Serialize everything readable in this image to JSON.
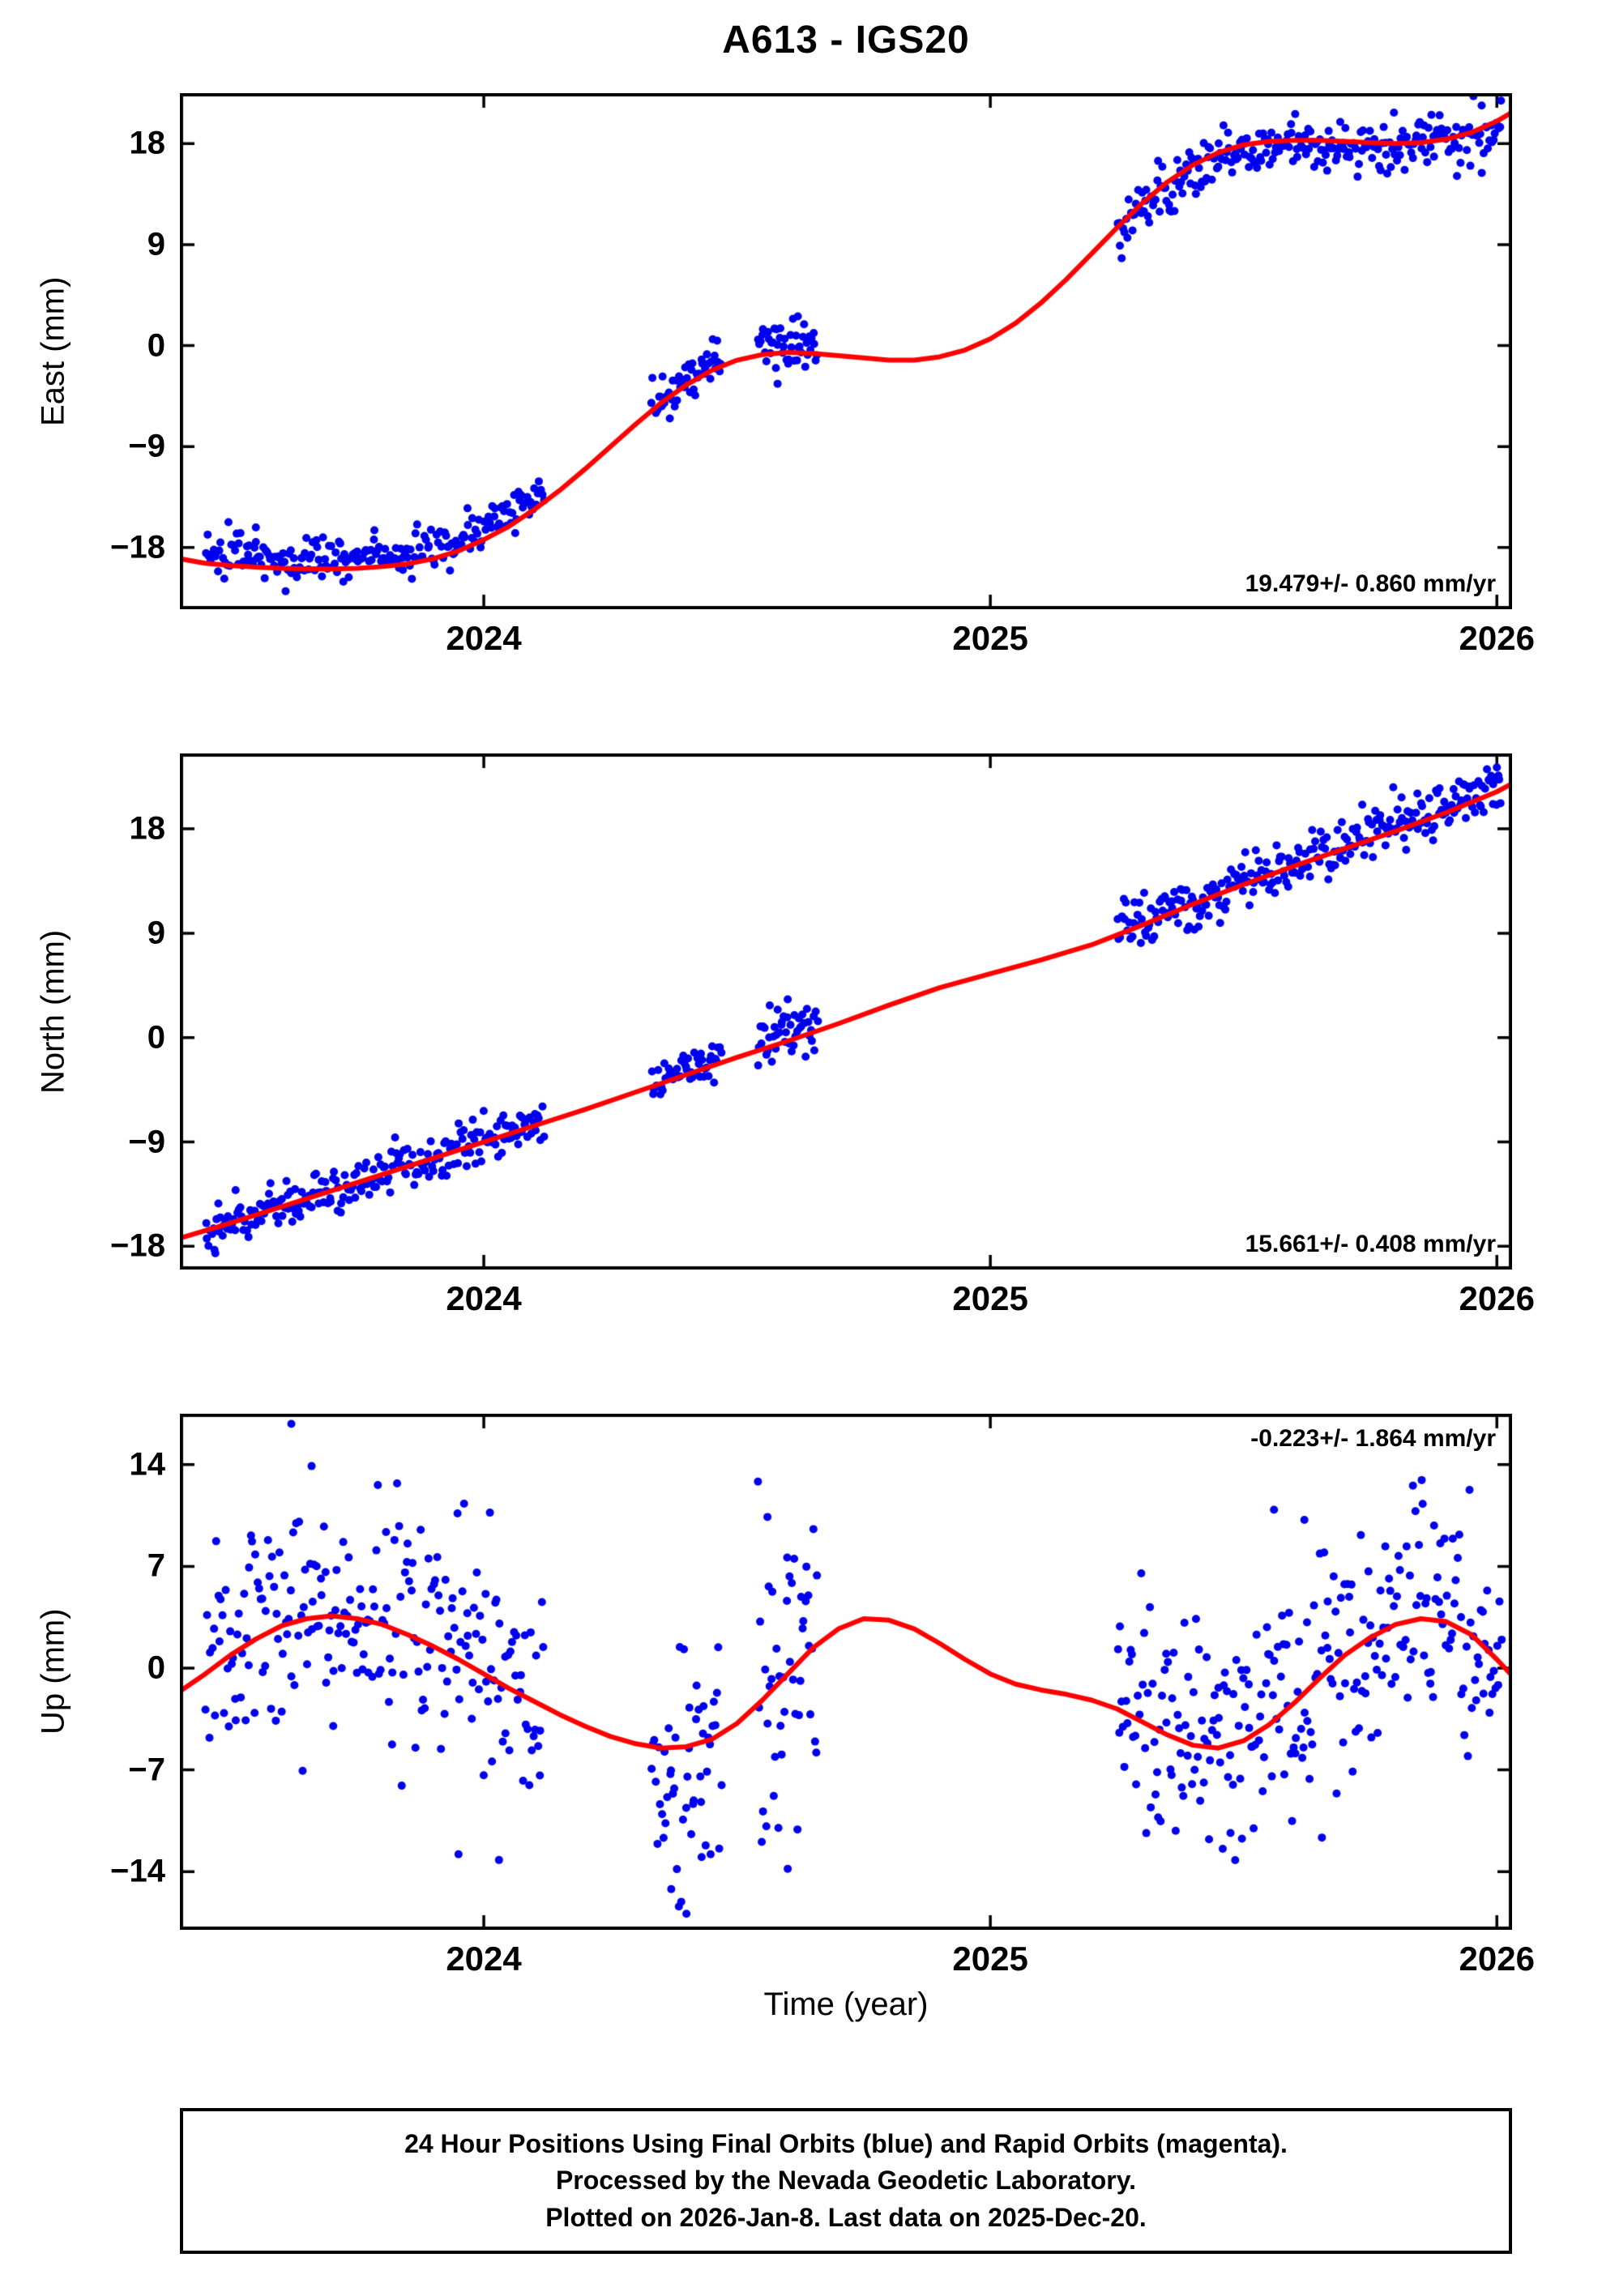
{
  "title": "A613 - IGS20",
  "xlabel": "Time (year)",
  "footer": {
    "line1": "24 Hour Positions Using Final Orbits (blue) and Rapid Orbits (magenta).",
    "line2": "Processed by the Nevada Geodetic Laboratory.",
    "line3": "Plotted on 2026-Jan-8. Last data on 2025-Dec-20."
  },
  "colors": {
    "points": "#0000ee",
    "model": "#ff0000",
    "axis": "#000000",
    "background": "#ffffff"
  },
  "chart_data": [
    {
      "type": "scatter",
      "name": "east",
      "ylabel": "East (mm)",
      "rate_label": "19.479+/- 0.860 mm/yr",
      "rate_label_position": "bottom-right",
      "xlim": [
        2023.4,
        2026.03
      ],
      "ylim": [
        -23.5,
        22.5
      ],
      "xticks": [
        2024,
        2025,
        2026
      ],
      "yticks": [
        -18,
        -9,
        0,
        9,
        18
      ],
      "seed": 11,
      "model": [
        [
          2023.4,
          -19.0
        ],
        [
          2023.45,
          -19.4
        ],
        [
          2023.5,
          -19.6
        ],
        [
          2023.55,
          -19.75
        ],
        [
          2023.6,
          -19.85
        ],
        [
          2023.65,
          -19.9
        ],
        [
          2023.7,
          -19.9
        ],
        [
          2023.75,
          -19.85
        ],
        [
          2023.8,
          -19.7
        ],
        [
          2023.85,
          -19.45
        ],
        [
          2023.9,
          -19.0
        ],
        [
          2023.95,
          -18.3
        ],
        [
          2024.0,
          -17.3
        ],
        [
          2024.05,
          -16.1
        ],
        [
          2024.1,
          -14.6
        ],
        [
          2024.15,
          -12.9
        ],
        [
          2024.2,
          -11.0
        ],
        [
          2024.25,
          -9.0
        ],
        [
          2024.3,
          -7.0
        ],
        [
          2024.35,
          -5.1
        ],
        [
          2024.4,
          -3.5
        ],
        [
          2024.45,
          -2.2
        ],
        [
          2024.5,
          -1.3
        ],
        [
          2024.55,
          -0.8
        ],
        [
          2024.6,
          -0.6
        ],
        [
          2024.65,
          -0.7
        ],
        [
          2024.7,
          -0.9
        ],
        [
          2024.75,
          -1.1
        ],
        [
          2024.8,
          -1.3
        ],
        [
          2024.85,
          -1.3
        ],
        [
          2024.9,
          -1.0
        ],
        [
          2024.95,
          -0.4
        ],
        [
          2025.0,
          0.6
        ],
        [
          2025.05,
          2.0
        ],
        [
          2025.1,
          3.8
        ],
        [
          2025.15,
          5.9
        ],
        [
          2025.2,
          8.2
        ],
        [
          2025.25,
          10.5
        ],
        [
          2025.3,
          12.7
        ],
        [
          2025.35,
          14.6
        ],
        [
          2025.4,
          16.1
        ],
        [
          2025.45,
          17.2
        ],
        [
          2025.5,
          17.9
        ],
        [
          2025.55,
          18.2
        ],
        [
          2025.6,
          18.3
        ],
        [
          2025.65,
          18.3
        ],
        [
          2025.7,
          18.2
        ],
        [
          2025.75,
          18.1
        ],
        [
          2025.8,
          18.0
        ],
        [
          2025.85,
          18.1
        ],
        [
          2025.9,
          18.4
        ],
        [
          2025.95,
          19.0
        ],
        [
          2026.0,
          20.0
        ],
        [
          2026.03,
          20.8
        ]
      ],
      "scatter_segments": [
        {
          "x0": 2023.45,
          "x1": 2024.12,
          "n": 225,
          "sigma": 1.0,
          "offset": 0.9
        },
        {
          "x0": 2024.33,
          "x1": 2024.47,
          "n": 50,
          "sigma": 0.9,
          "offset": 0.4
        },
        {
          "x0": 2024.54,
          "x1": 2024.66,
          "n": 45,
          "sigma": 1.2,
          "offset": 0.9
        },
        {
          "x0": 2025.25,
          "x1": 2026.01,
          "n": 265,
          "sigma": 1.2,
          "offset": -0.4
        }
      ],
      "outliers": [
        [
          2023.55,
          -16.2
        ],
        [
          2024.62,
          2.6
        ],
        [
          2024.58,
          -3.4
        ],
        [
          2025.97,
          21.4
        ]
      ]
    },
    {
      "type": "scatter",
      "name": "north",
      "ylabel": "North (mm)",
      "rate_label": "15.661+/- 0.408 mm/yr",
      "rate_label_position": "bottom-right",
      "xlim": [
        2023.4,
        2026.03
      ],
      "ylim": [
        -20.0,
        24.5
      ],
      "xticks": [
        2024,
        2025,
        2026
      ],
      "yticks": [
        -18,
        -9,
        0,
        9,
        18
      ],
      "seed": 22,
      "model": [
        [
          2023.4,
          -17.3
        ],
        [
          2023.5,
          -16.0
        ],
        [
          2023.6,
          -14.6
        ],
        [
          2023.7,
          -13.2
        ],
        [
          2023.8,
          -11.8
        ],
        [
          2023.9,
          -10.4
        ],
        [
          2024.0,
          -9.0
        ],
        [
          2024.1,
          -7.6
        ],
        [
          2024.2,
          -6.2
        ],
        [
          2024.3,
          -4.7
        ],
        [
          2024.4,
          -3.2
        ],
        [
          2024.5,
          -1.7
        ],
        [
          2024.6,
          -0.3
        ],
        [
          2024.7,
          1.2
        ],
        [
          2024.8,
          2.8
        ],
        [
          2024.9,
          4.3
        ],
        [
          2025.0,
          5.5
        ],
        [
          2025.1,
          6.7
        ],
        [
          2025.2,
          8.0
        ],
        [
          2025.3,
          9.7
        ],
        [
          2025.4,
          11.5
        ],
        [
          2025.5,
          13.2
        ],
        [
          2025.6,
          14.8
        ],
        [
          2025.7,
          16.3
        ],
        [
          2025.8,
          17.8
        ],
        [
          2025.9,
          19.4
        ],
        [
          2026.0,
          21.2
        ],
        [
          2026.03,
          21.9
        ]
      ],
      "scatter_segments": [
        {
          "x0": 2023.45,
          "x1": 2024.12,
          "n": 225,
          "sigma": 1.1,
          "offset": 0.0
        },
        {
          "x0": 2024.33,
          "x1": 2024.47,
          "n": 50,
          "sigma": 0.9,
          "offset": 0.3
        },
        {
          "x0": 2024.54,
          "x1": 2024.66,
          "n": 45,
          "sigma": 1.3,
          "offset": 0.6
        },
        {
          "x0": 2025.25,
          "x1": 2026.01,
          "n": 265,
          "sigma": 1.2,
          "offset": 0.3
        }
      ],
      "outliers": [
        [
          2023.47,
          -18.6
        ],
        [
          2024.6,
          3.3
        ],
        [
          2026.0,
          23.3
        ]
      ]
    },
    {
      "type": "scatter",
      "name": "up",
      "ylabel": "Up (mm)",
      "rate_label": "-0.223+/- 1.864 mm/yr",
      "rate_label_position": "top-right",
      "xlim": [
        2023.4,
        2026.03
      ],
      "ylim": [
        -18.0,
        17.5
      ],
      "xticks": [
        2024,
        2025,
        2026
      ],
      "yticks": [
        -14,
        -7,
        0,
        7,
        14
      ],
      "seed": 33,
      "model": [
        [
          2023.4,
          -1.6
        ],
        [
          2023.45,
          -0.4
        ],
        [
          2023.5,
          0.9
        ],
        [
          2023.55,
          2.0
        ],
        [
          2023.6,
          2.9
        ],
        [
          2023.65,
          3.4
        ],
        [
          2023.7,
          3.6
        ],
        [
          2023.75,
          3.4
        ],
        [
          2023.8,
          3.0
        ],
        [
          2023.85,
          2.3
        ],
        [
          2023.9,
          1.5
        ],
        [
          2023.95,
          0.6
        ],
        [
          2024.0,
          -0.4
        ],
        [
          2024.05,
          -1.4
        ],
        [
          2024.1,
          -2.3
        ],
        [
          2024.15,
          -3.2
        ],
        [
          2024.2,
          -4.0
        ],
        [
          2024.25,
          -4.7
        ],
        [
          2024.3,
          -5.2
        ],
        [
          2024.35,
          -5.5
        ],
        [
          2024.4,
          -5.4
        ],
        [
          2024.45,
          -4.9
        ],
        [
          2024.5,
          -3.8
        ],
        [
          2024.55,
          -2.2
        ],
        [
          2024.6,
          -0.4
        ],
        [
          2024.65,
          1.4
        ],
        [
          2024.7,
          2.7
        ],
        [
          2024.75,
          3.4
        ],
        [
          2024.8,
          3.3
        ],
        [
          2024.85,
          2.7
        ],
        [
          2024.9,
          1.7
        ],
        [
          2024.95,
          0.6
        ],
        [
          2025.0,
          -0.4
        ],
        [
          2025.05,
          -1.1
        ],
        [
          2025.1,
          -1.5
        ],
        [
          2025.15,
          -1.8
        ],
        [
          2025.2,
          -2.2
        ],
        [
          2025.25,
          -2.8
        ],
        [
          2025.3,
          -3.7
        ],
        [
          2025.35,
          -4.6
        ],
        [
          2025.4,
          -5.3
        ],
        [
          2025.45,
          -5.5
        ],
        [
          2025.5,
          -5.0
        ],
        [
          2025.55,
          -3.9
        ],
        [
          2025.6,
          -2.4
        ],
        [
          2025.65,
          -0.7
        ],
        [
          2025.7,
          0.9
        ],
        [
          2025.75,
          2.1
        ],
        [
          2025.8,
          3.0
        ],
        [
          2025.85,
          3.4
        ],
        [
          2025.9,
          3.2
        ],
        [
          2025.95,
          2.3
        ],
        [
          2026.0,
          0.6
        ],
        [
          2026.03,
          -0.5
        ]
      ],
      "scatter_segments": [
        {
          "x0": 2023.45,
          "x1": 2024.12,
          "n": 225,
          "sigma": 4.3,
          "offset": 0.5
        },
        {
          "x0": 2024.33,
          "x1": 2024.47,
          "n": 50,
          "sigma": 4.5,
          "offset": -1.5
        },
        {
          "x0": 2024.54,
          "x1": 2024.66,
          "n": 45,
          "sigma": 5.0,
          "offset": 0.5
        },
        {
          "x0": 2025.25,
          "x1": 2026.01,
          "n": 265,
          "sigma": 4.2,
          "offset": 0.0
        }
      ],
      "outliers": [
        [
          2023.62,
          16.8
        ],
        [
          2023.66,
          13.9
        ],
        [
          2023.95,
          -12.8
        ],
        [
          2024.03,
          -13.2
        ],
        [
          2024.37,
          -15.2
        ],
        [
          2024.4,
          -16.9
        ],
        [
          2024.43,
          -13.0
        ],
        [
          2024.56,
          10.4
        ],
        [
          2024.6,
          -13.8
        ],
        [
          2025.56,
          10.9
        ],
        [
          2025.62,
          10.2
        ]
      ]
    }
  ]
}
